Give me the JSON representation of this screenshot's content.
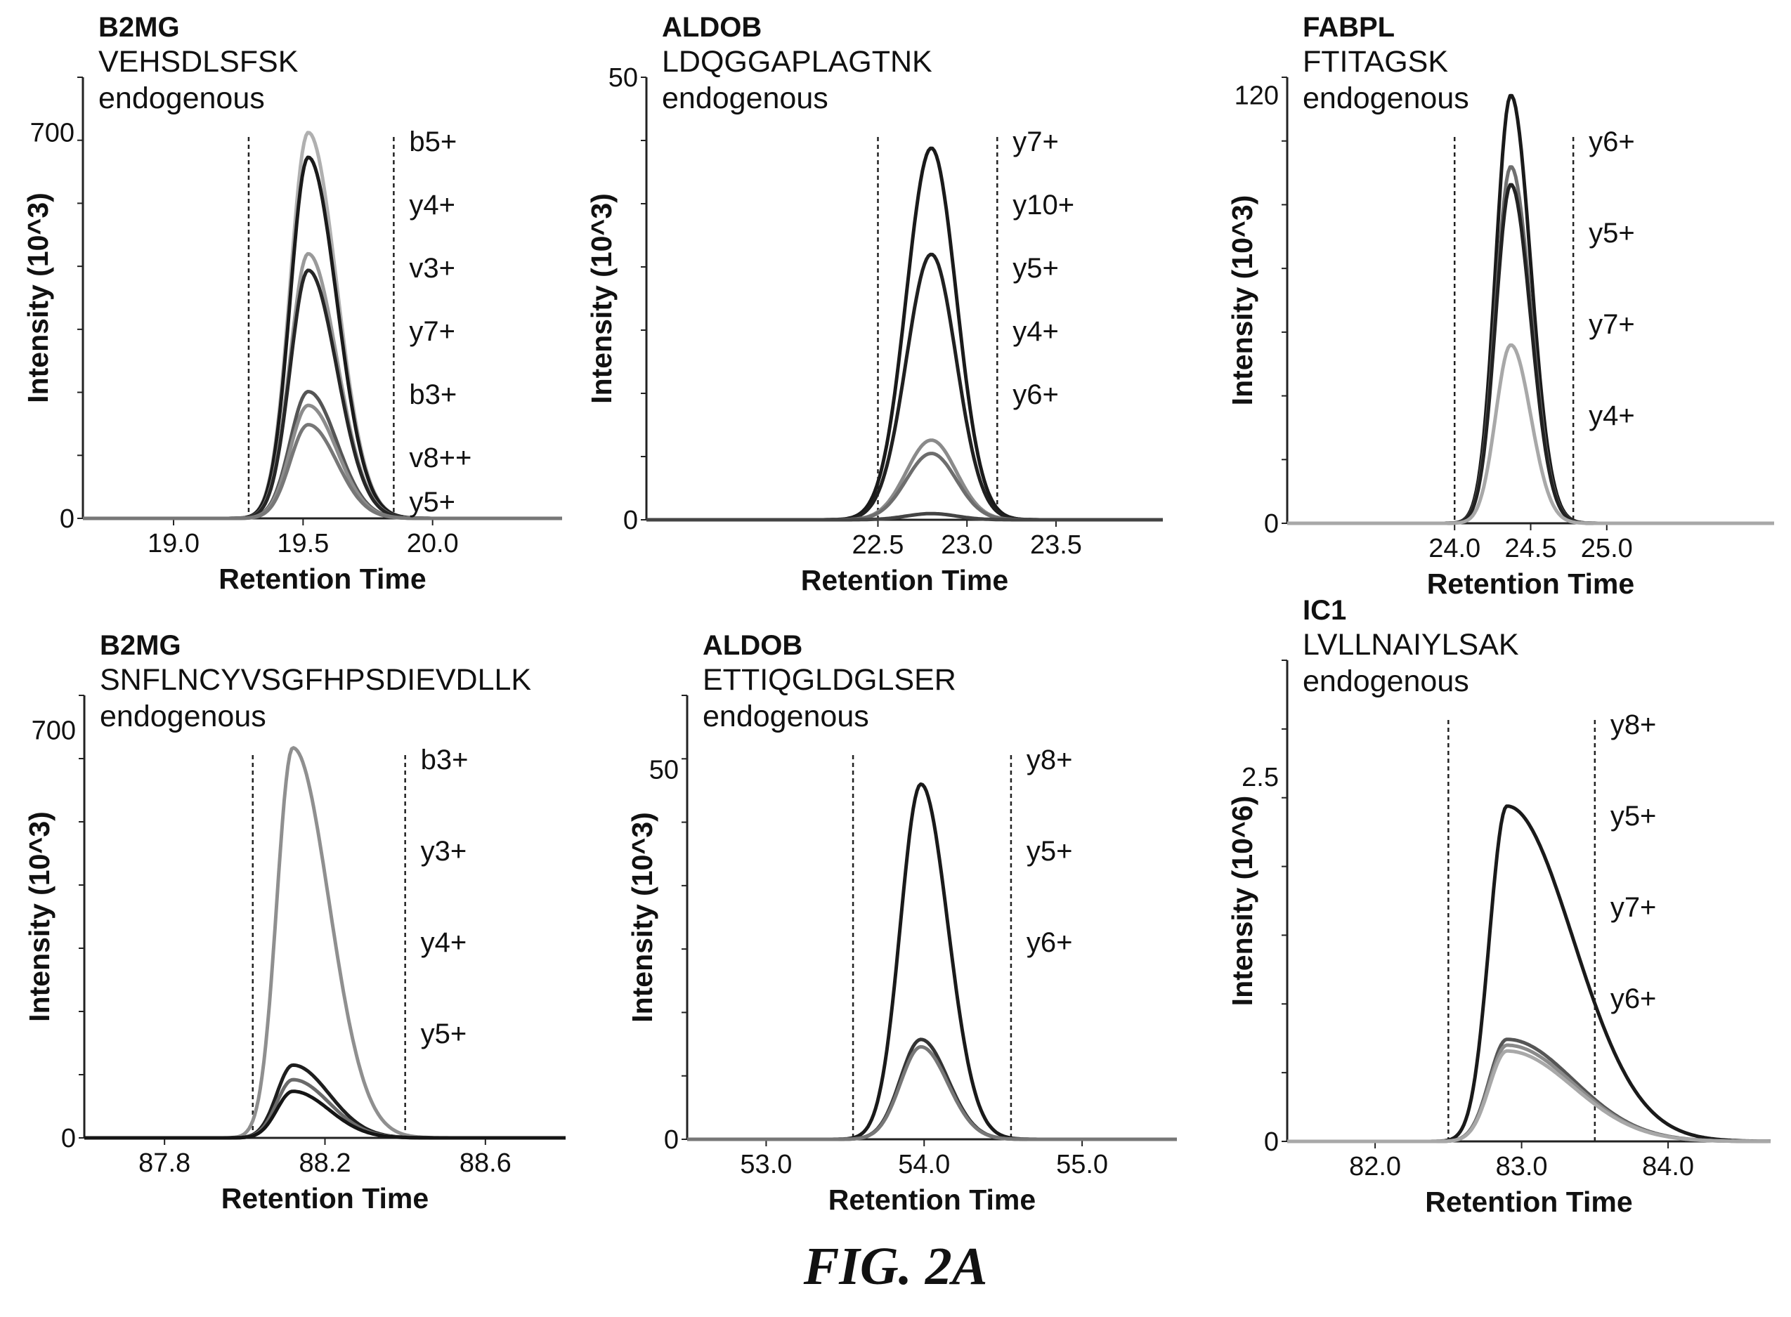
{
  "figure_caption": "FIG. 2A",
  "chart_data": [
    {
      "type": "line",
      "protein": "B2MG",
      "peptide": "VEHSDLSFSK",
      "subtitle": "endogenous",
      "xlabel": "Retention Time",
      "ylabel": "Intensity (10^3)",
      "xlim": [
        18.65,
        20.5
      ],
      "ylim": [
        0,
        800
      ],
      "xticks": [
        "19.0",
        "19.5",
        "20.0"
      ],
      "yticks": [
        "0",
        "700"
      ],
      "integration_bounds": [
        19.29,
        19.85
      ],
      "peak_center": 19.52,
      "peak_sigma_left": 0.07,
      "peak_sigma_right": 0.11,
      "ion_labels": [
        "b5+",
        "y4+",
        "v3+",
        "y7+",
        "b3+",
        "v8++",
        "y5+"
      ],
      "series": [
        {
          "name": "b5+",
          "peak": 700,
          "color": "#b0b0b0"
        },
        {
          "name": "y4+",
          "peak": 655,
          "color": "#1a1a1a"
        },
        {
          "name": "v3+",
          "peak": 480,
          "color": "#9a9a9a"
        },
        {
          "name": "y7+",
          "peak": 450,
          "color": "#262626"
        },
        {
          "name": "b3+",
          "peak": 230,
          "color": "#555555"
        },
        {
          "name": "v8++",
          "peak": 205,
          "color": "#8c8c8c"
        },
        {
          "name": "y5+",
          "peak": 170,
          "color": "#777777"
        }
      ]
    },
    {
      "type": "line",
      "protein": "ALDOB",
      "peptide": "LDQGGAPLAGTNK",
      "subtitle": "endogenous",
      "xlabel": "Retention Time",
      "ylabel": "Intensity (10^3)",
      "xlim": [
        21.2,
        24.1
      ],
      "ylim": [
        0,
        50
      ],
      "xticks": [
        "22.5",
        "23.0",
        "23.5"
      ],
      "yticks": [
        "0",
        "50"
      ],
      "integration_bounds": [
        22.5,
        23.17
      ],
      "peak_center": 22.8,
      "peak_sigma_left": 0.14,
      "peak_sigma_right": 0.14,
      "ion_labels": [
        "y7+",
        "y10+",
        "y5+",
        "y4+",
        "y6+"
      ],
      "series": [
        {
          "name": "y7+",
          "peak": 42,
          "color": "#1a1a1a"
        },
        {
          "name": "y10+",
          "peak": 30,
          "color": "#202020"
        },
        {
          "name": "y5+",
          "peak": 9,
          "color": "#8a8a8a"
        },
        {
          "name": "y4+",
          "peak": 7.5,
          "color": "#6d6d6d"
        },
        {
          "name": "y6+",
          "peak": 0.7,
          "color": "#444444"
        }
      ]
    },
    {
      "type": "line",
      "protein": "FABPL",
      "peptide": "FTITAGSK",
      "subtitle": "endogenous",
      "xlabel": "Retention Time",
      "ylabel": "Intensity (10^3)",
      "xlim": [
        22.9,
        26.1
      ],
      "ylim": [
        0,
        125
      ],
      "xticks": [
        "24.0",
        "24.5",
        "25.0"
      ],
      "yticks": [
        "0",
        "120"
      ],
      "integration_bounds": [
        24.0,
        24.78
      ],
      "peak_center": 24.37,
      "peak_sigma_left": 0.1,
      "peak_sigma_right": 0.13,
      "ion_labels": [
        "y6+",
        "y5+",
        "y7+",
        "y4+"
      ],
      "series": [
        {
          "name": "y6+",
          "peak": 120,
          "color": "#1a1a1a"
        },
        {
          "name": "y5+",
          "peak": 100,
          "color": "#6f6f6f"
        },
        {
          "name": "y7+",
          "peak": 95,
          "color": "#222222"
        },
        {
          "name": "y4+",
          "peak": 50,
          "color": "#a8a8a8"
        }
      ]
    },
    {
      "type": "line",
      "protein": "B2MG",
      "peptide": "SNFLNCYVSGFHPSDIEVDLLK",
      "subtitle": "endogenous",
      "xlabel": "Retention Time",
      "ylabel": "Intensity (10^3)",
      "xlim": [
        87.6,
        88.8
      ],
      "ylim": [
        0,
        760
      ],
      "xticks": [
        "87.8",
        "88.2",
        "88.6"
      ],
      "yticks": [
        "0",
        "700"
      ],
      "integration_bounds": [
        88.02,
        88.4
      ],
      "peak_center": 88.12,
      "peak_sigma_left": 0.04,
      "peak_sigma_right": 0.09,
      "ion_labels": [
        "b3+",
        "y3+",
        "y4+",
        "y5+"
      ],
      "series": [
        {
          "name": "b3+",
          "peak": 670,
          "color": "#8f8f8f"
        },
        {
          "name": "y3+",
          "peak": 125,
          "color": "#1e1e1e"
        },
        {
          "name": "y4+",
          "peak": 100,
          "color": "#6a6a6a"
        },
        {
          "name": "y5+",
          "peak": 80,
          "color": "#151515"
        }
      ]
    },
    {
      "type": "line",
      "protein": "ALDOB",
      "peptide": "ETTIQGLDGLSER",
      "subtitle": "endogenous",
      "xlabel": "Retention Time",
      "ylabel": "Intensity (10^3)",
      "xlim": [
        52.5,
        55.6
      ],
      "ylim": [
        0,
        60
      ],
      "xticks": [
        "53.0",
        "54.0",
        "55.0"
      ],
      "yticks": [
        "0",
        "50"
      ],
      "integration_bounds": [
        53.55,
        54.55
      ],
      "peak_center": 53.98,
      "peak_sigma_left": 0.13,
      "peak_sigma_right": 0.17,
      "ion_labels": [
        "y8+",
        "y5+",
        "y6+"
      ],
      "series": [
        {
          "name": "y8+",
          "peak": 48,
          "color": "#1a1a1a"
        },
        {
          "name": "y5+",
          "peak": 13.5,
          "color": "#333333"
        },
        {
          "name": "y6+",
          "peak": 12.5,
          "color": "#777777"
        }
      ]
    },
    {
      "type": "line",
      "protein": "IC1",
      "peptide": "LVLLNAIYLSAK",
      "subtitle": "endogenous",
      "xlabel": "Retention Time",
      "ylabel": "Intensity (10^6)",
      "xlim": [
        81.4,
        84.7
      ],
      "ylim": [
        0,
        3.3
      ],
      "xticks": [
        "82.0",
        "83.0",
        "84.0"
      ],
      "yticks": [
        "0",
        "2.5"
      ],
      "integration_bounds": [
        82.5,
        83.5
      ],
      "peak_center": 82.9,
      "peak_sigma_left": 0.12,
      "peak_sigma_right": 0.45,
      "ion_labels": [
        "y8+",
        "y5+",
        "y7+",
        "y6+"
      ],
      "series": [
        {
          "name": "y8+",
          "peak": 2.3,
          "color": "#1a1a1a"
        },
        {
          "name": "y5+",
          "peak": 0.7,
          "color": "#555555"
        },
        {
          "name": "y7+",
          "peak": 0.66,
          "color": "#8a8a8a"
        },
        {
          "name": "y6+",
          "peak": 0.62,
          "color": "#a8a8a8"
        }
      ]
    }
  ]
}
